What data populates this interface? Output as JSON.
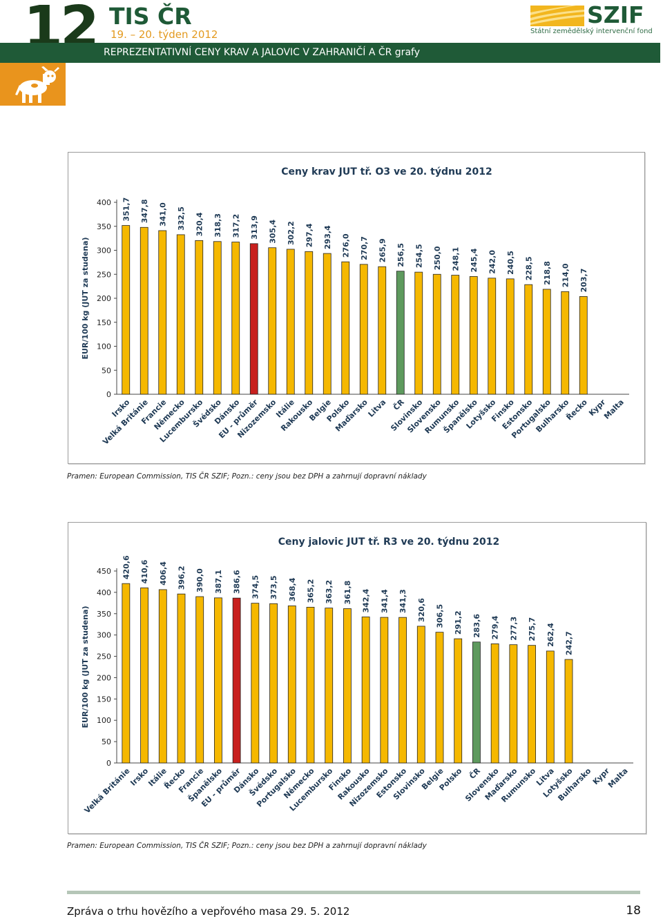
{
  "header": {
    "issue_number": "12",
    "brand": "TIS ČR",
    "week": "19. – 20. týden  2012",
    "title": "REPREZENTATIVNÍ CENY KRAV A JALOVIC  V ZAHRANIČÍ  A  ČR   grafy",
    "logo_text": "SZIF",
    "logo_subtitle": "Státní zemědělský intervenční fond"
  },
  "colors": {
    "band": "#1f5a37",
    "orange": "#e9941d",
    "bar_yellow": "#f5b800",
    "bar_red": "#c8201e",
    "bar_green": "#5e9a5e"
  },
  "chart_data": [
    {
      "type": "bar",
      "title": "Ceny krav JUT  tř. O3  ve 20. týdnu 2012",
      "ylabel": "EUR/100 kg (JUT za studena)",
      "xlabel": "",
      "ylim": [
        0,
        400
      ],
      "yticks": [
        0,
        50,
        100,
        150,
        200,
        250,
        300,
        350,
        400
      ],
      "categories": [
        "Irsko",
        "Velká Británie",
        "Francie",
        "Německo",
        "Lucembursko",
        "Švédsko",
        "Dánsko",
        "EU - průměr",
        "Nizozemsko",
        "Itálie",
        "Rakousko",
        "Belgie",
        "Polsko",
        "Maďarsko",
        "Litva",
        "ČR",
        "Slovinsko",
        "Slovensko",
        "Rumunsko",
        "Španělsko",
        "Lotyšsko",
        "Finsko",
        "Estonsko",
        "Portugalsko",
        "Bulharsko",
        "Řecko",
        "Kypr",
        "Malta"
      ],
      "values": [
        351.7,
        347.8,
        341.0,
        332.5,
        320.4,
        318.3,
        317.2,
        313.9,
        305.4,
        302.2,
        297.4,
        293.4,
        276.0,
        270.7,
        265.9,
        256.5,
        254.5,
        250.0,
        248.1,
        245.4,
        242.0,
        240.5,
        228.5,
        218.8,
        214.0,
        203.7,
        null,
        null
      ],
      "value_labels": [
        "351,7",
        "347,8",
        "341,0",
        "332,5",
        "320,4",
        "318,3",
        "317,2",
        "313,9",
        "305,4",
        "302,2",
        "297,4",
        "293,4",
        "276,0",
        "270,7",
        "265,9",
        "256,5",
        "254,5",
        "250,0",
        "248,1",
        "245,4",
        "242,0",
        "240,5",
        "228,5",
        "218,8",
        "214,0",
        "203,7",
        "",
        ""
      ],
      "highlight_red": [
        "EU - průměr"
      ],
      "highlight_green": [
        "ČR"
      ]
    },
    {
      "type": "bar",
      "title": "Ceny jalovic JUT  tř. R3  ve 20. týdnu 2012",
      "ylabel": "EUR/100 kg (JUT za studena)",
      "xlabel": "",
      "ylim": [
        0,
        450
      ],
      "yticks": [
        0,
        50,
        100,
        150,
        200,
        250,
        300,
        350,
        400,
        450
      ],
      "categories": [
        "Velká Británie",
        "Irsko",
        "Itálie",
        "Řecko",
        "Francie",
        "Španělsko",
        "EU - průměr",
        "Dánsko",
        "Švédsko",
        "Portugalsko",
        "Německo",
        "Lucembursko",
        "Finsko",
        "Rakousko",
        "Nizozemsko",
        "Estonsko",
        "Slovinsko",
        "Belgie",
        "Polsko",
        "ČR",
        "Slovensko",
        "Maďarsko",
        "Rumunsko",
        "Litva",
        "Lotyšsko",
        "Bulharsko",
        "Kypr",
        "Malta"
      ],
      "values": [
        420.6,
        410.6,
        406.4,
        396.2,
        390.0,
        387.1,
        386.6,
        374.5,
        373.5,
        368.4,
        365.2,
        363.2,
        361.8,
        342.4,
        341.4,
        341.3,
        320.6,
        306.5,
        291.2,
        283.6,
        279.4,
        277.3,
        275.7,
        262.4,
        242.7,
        null,
        null,
        null
      ],
      "value_labels": [
        "420,6",
        "410,6",
        "406,4",
        "396,2",
        "390,0",
        "387,1",
        "386,6",
        "374,5",
        "373,5",
        "368,4",
        "365,2",
        "363,2",
        "361,8",
        "342,4",
        "341,4",
        "341,3",
        "320,6",
        "306,5",
        "291,2",
        "283,6",
        "279,4",
        "277,3",
        "275,7",
        "262,4",
        "242,7",
        "",
        "",
        ""
      ],
      "highlight_red": [
        "EU - průměr"
      ],
      "highlight_green": [
        "ČR"
      ]
    }
  ],
  "sources": [
    "Pramen: European Commission, TIS ČR SZIF; Pozn.:  ceny jsou bez DPH a zahrnují dopravní náklady",
    "Pramen: European Commission, TIS ČR SZIF; Pozn.:  ceny jsou bez DPH a zahrnují dopravní náklady"
  ],
  "footer": {
    "text": "Zpráva o trhu hovězího a vepřového masa  29. 5. 2012",
    "page": "18"
  }
}
